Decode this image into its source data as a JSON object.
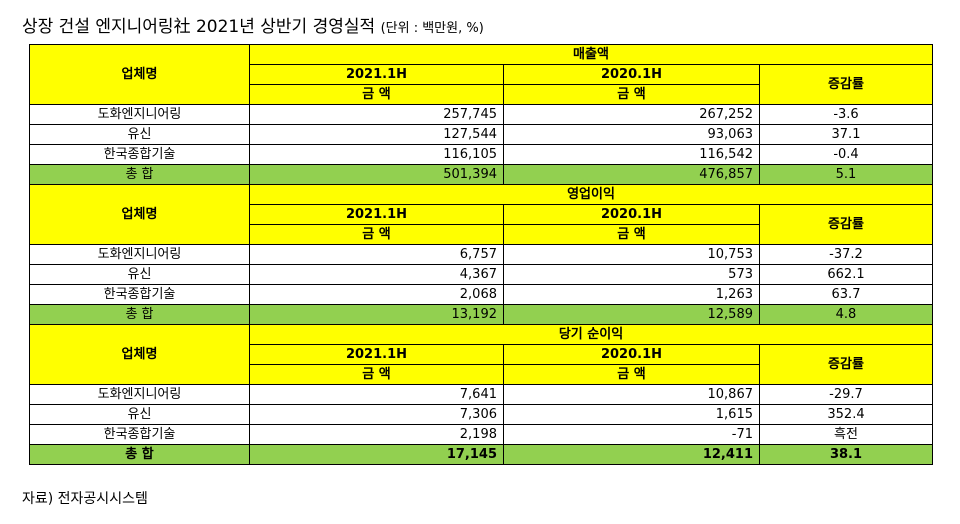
{
  "title": "상장 건설 엔지니어링社 2021년 상반기 경영실적",
  "unit": "(단위 : 백만원, %)",
  "footnote": "자료) 전자공시시스템",
  "header": {
    "company": "업체명",
    "col_a": "2021.1H",
    "col_b": "2020.1H",
    "col_rate": "증감률",
    "amount": "금  액"
  },
  "sections": [
    {
      "label": "매출액",
      "rows": [
        {
          "name": "도화엔지니어링",
          "a": "257,745",
          "b": "267,252",
          "rate": "-3.6"
        },
        {
          "name": "유신",
          "a": "127,544",
          "b": "93,063",
          "rate": "37.1"
        },
        {
          "name": "한국종합기술",
          "a": "116,105",
          "b": "116,542",
          "rate": "-0.4"
        }
      ],
      "total": {
        "name": "총  합",
        "a": "501,394",
        "b": "476,857",
        "rate": "5.1"
      }
    },
    {
      "label": "영업이익",
      "rows": [
        {
          "name": "도화엔지니어링",
          "a": "6,757",
          "b": "10,753",
          "rate": "-37.2"
        },
        {
          "name": "유신",
          "a": "4,367",
          "b": "573",
          "rate": "662.1"
        },
        {
          "name": "한국종합기술",
          "a": "2,068",
          "b": "1,263",
          "rate": "63.7"
        }
      ],
      "total": {
        "name": "총  합",
        "a": "13,192",
        "b": "12,589",
        "rate": "4.8"
      }
    },
    {
      "label": "당기 순이익",
      "rows": [
        {
          "name": "도화엔지니어링",
          "a": "7,641",
          "b": "10,867",
          "rate": "-29.7"
        },
        {
          "name": "유신",
          "a": "7,306",
          "b": "1,615",
          "rate": "352.4"
        },
        {
          "name": "한국종합기술",
          "a": "2,198",
          "b": "-71",
          "rate": "흑전"
        }
      ],
      "total": {
        "name": "총  합",
        "a": "17,145",
        "b": "12,411",
        "rate": "38.1"
      }
    }
  ]
}
